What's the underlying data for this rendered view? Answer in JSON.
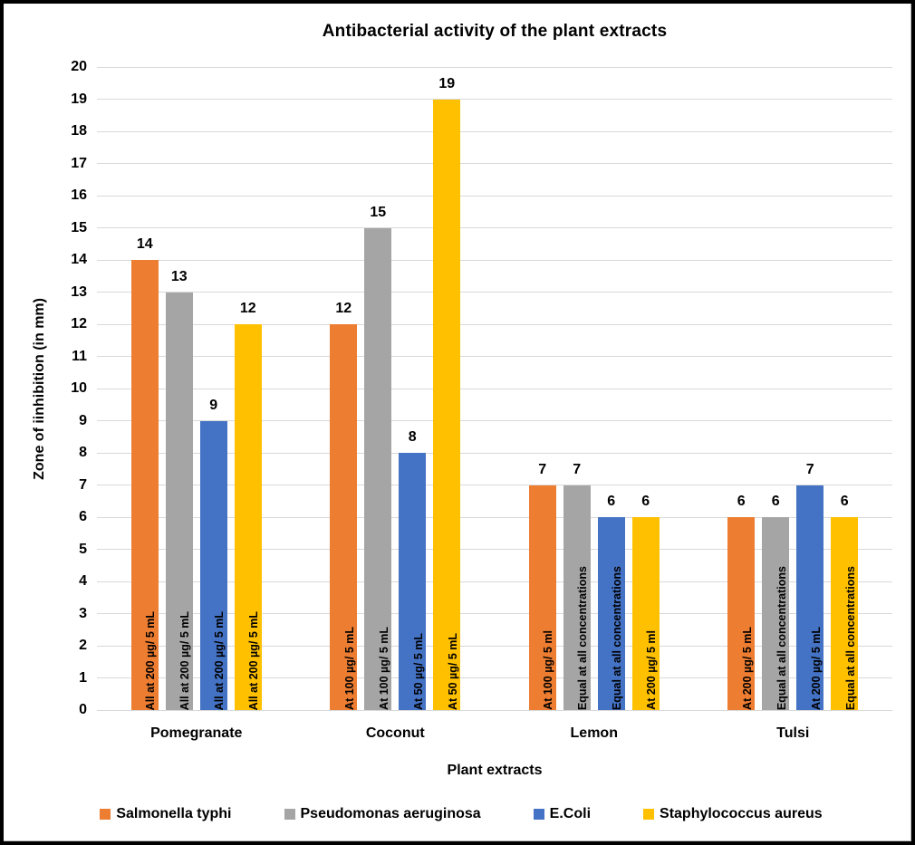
{
  "chart_data": {
    "type": "bar",
    "title": "Antibacterial activity of the plant extracts",
    "xlabel": "Plant extracts",
    "ylabel": "Zone of iinhibition (in mm)",
    "ylim": [
      0,
      20
    ],
    "ytick_step": 1,
    "grid": "horizontal",
    "gridline_color": "#d9d9d9",
    "legend_position": "bottom",
    "categories": [
      "Pomegranate",
      "Coconut",
      "Lemon",
      "Tulsi"
    ],
    "series": [
      {
        "name": "Salmonella typhi",
        "color": "#ED7D31",
        "values": [
          14,
          12,
          7,
          6
        ],
        "bar_labels": [
          "All at 200 µg/ 5 mL",
          "At 100 µg/ 5 mL",
          "At 100 µg/ 5 ml",
          "At 200 µg/ 5 mL"
        ]
      },
      {
        "name": "Pseudomonas aeruginosa",
        "color": "#A5A5A5",
        "values": [
          13,
          15,
          7,
          6
        ],
        "bar_labels": [
          "All at 200 µg/ 5 mL",
          "At 100 µg/ 5 mL",
          "Equal at all concentrations",
          "Equal at all concentrations"
        ]
      },
      {
        "name": "E.Coli",
        "color": "#4472C4",
        "values": [
          9,
          8,
          6,
          7
        ],
        "bar_labels": [
          "All at 200 µg/ 5 mL",
          "At 50 µg/ 5 mL",
          "Equal at all concentrations",
          "At 200 µg/ 5 mL"
        ]
      },
      {
        "name": "Staphylococcus aureus",
        "color": "#FFC000",
        "values": [
          12,
          19,
          6,
          6
        ],
        "bar_labels": [
          "All at 200 µg/ 5 mL",
          "At 50 µg/ 5 mL",
          "At 200 µg/ 5 ml",
          "Equal at all concentrations"
        ]
      }
    ]
  }
}
